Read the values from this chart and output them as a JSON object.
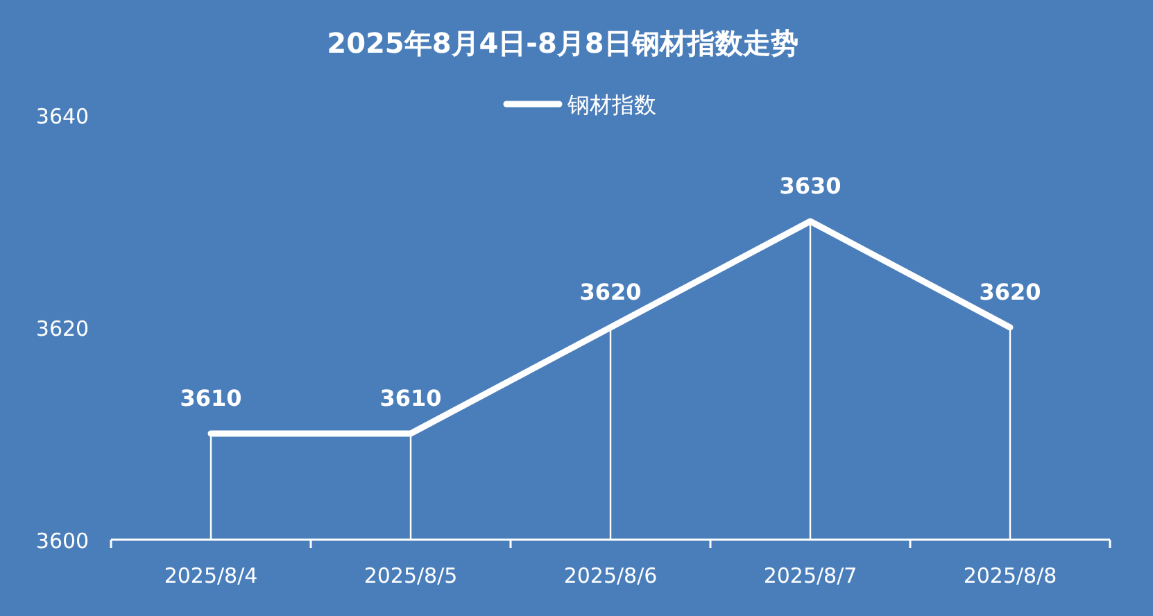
{
  "chart_data": {
    "type": "line",
    "title": "2025年8月4日-8月8日钢材指数走势",
    "categories": [
      "2025/8/4",
      "2025/8/5",
      "2025/8/6",
      "2025/8/7",
      "2025/8/8"
    ],
    "series": [
      {
        "name": "钢材指数",
        "color": "#ffffff",
        "values": [
          3610,
          3610,
          3620,
          3630,
          3620
        ]
      }
    ],
    "ylim": [
      3600,
      3640
    ],
    "yticks": [
      3600,
      3620,
      3640
    ],
    "data_labels": true,
    "legend": "top",
    "marker": "none",
    "grid": "x"
  }
}
